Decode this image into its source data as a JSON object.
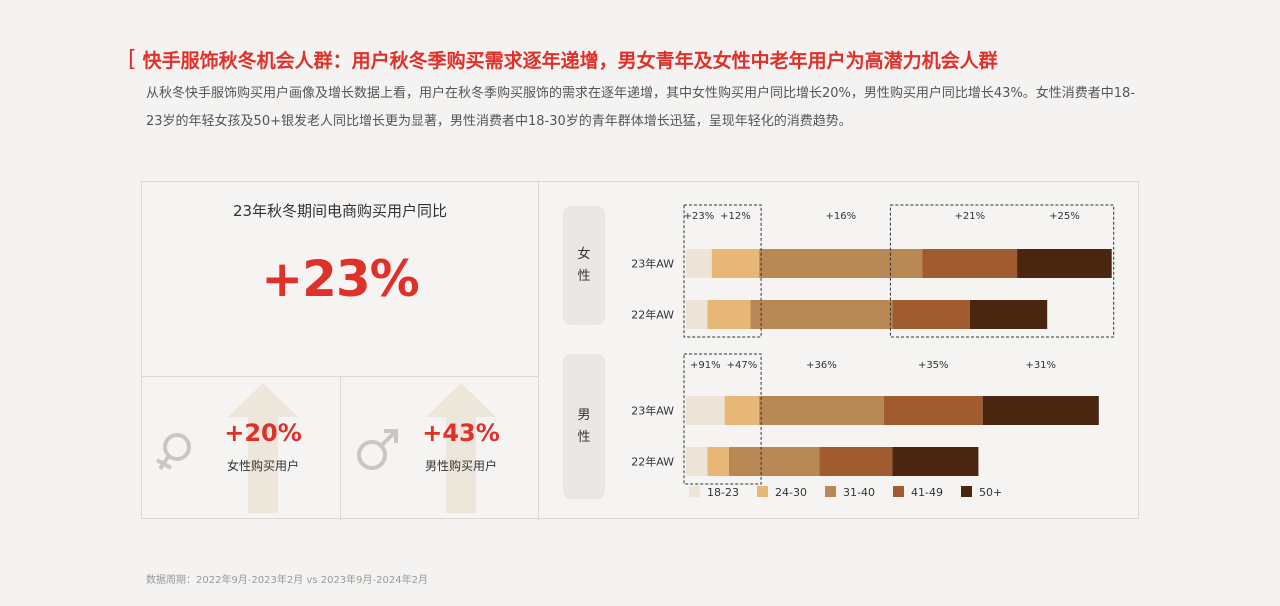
{
  "header": {
    "title": "快手服饰秋冬机会人群：用户秋冬季购买需求逐年递增，男女青年及女性中老年用户为高潜力机会人群",
    "description": "从秋冬快手服饰购买用户画像及增长数据上看，用户在秋冬季购买服饰的需求在逐年递增，其中女性购买用户同比增长20%，男性购买用户同比增长43%。女性消费者中18-23岁的年轻女孩及50+银发老人同比增长更为显著，男性消费者中18-30岁的青年群体增长迅猛，呈现年轻化的消费趋势。"
  },
  "summary": {
    "overall_label": "23年秋冬期间电商购买用户同比",
    "overall_value": "+23%",
    "female_value": "+20%",
    "female_label": "女性购买用户",
    "male_value": "+43%",
    "male_label": "男性购买用户"
  },
  "colors": {
    "accent": "#e0302a",
    "age_18_23": "#ece4d6",
    "age_24_30": "#e6b776",
    "age_31_40": "#b98955",
    "age_41_49": "#a05b30",
    "age_50_plus": "#4a2510"
  },
  "chart_data": {
    "type": "bar",
    "orientation": "horizontal",
    "stacked": true,
    "legend_placement": "bottom",
    "categories": [
      "23年AW",
      "22年AW"
    ],
    "groups": [
      {
        "name": "女\n性",
        "series": [
          {
            "name": "18-23",
            "values": [
              6,
              5
            ],
            "growth": "+23%"
          },
          {
            "name": "24-30",
            "values": [
              11,
              10
            ],
            "growth": "+12%"
          },
          {
            "name": "31-40",
            "values": [
              38,
              33
            ],
            "growth": "+16%"
          },
          {
            "name": "41-49",
            "values": [
              22,
              18
            ],
            "growth": "+21%"
          },
          {
            "name": "50+",
            "values": [
              22,
              18
            ],
            "growth": "+25%"
          }
        ]
      },
      {
        "name": "男\n性",
        "series": [
          {
            "name": "18-23",
            "values": [
              9,
              5
            ],
            "growth": "+91%"
          },
          {
            "name": "24-30",
            "values": [
              8,
              5
            ],
            "growth": "+47%"
          },
          {
            "name": "31-40",
            "values": [
              29,
              21
            ],
            "growth": "+36%"
          },
          {
            "name": "41-49",
            "values": [
              23,
              17
            ],
            "growth": "+35%"
          },
          {
            "name": "50+",
            "values": [
              27,
              20
            ],
            "growth": "+31%"
          }
        ]
      }
    ]
  },
  "footer": {
    "note": "数据周期：2022年9月-2023年2月 vs 2023年9月-2024年2月"
  }
}
